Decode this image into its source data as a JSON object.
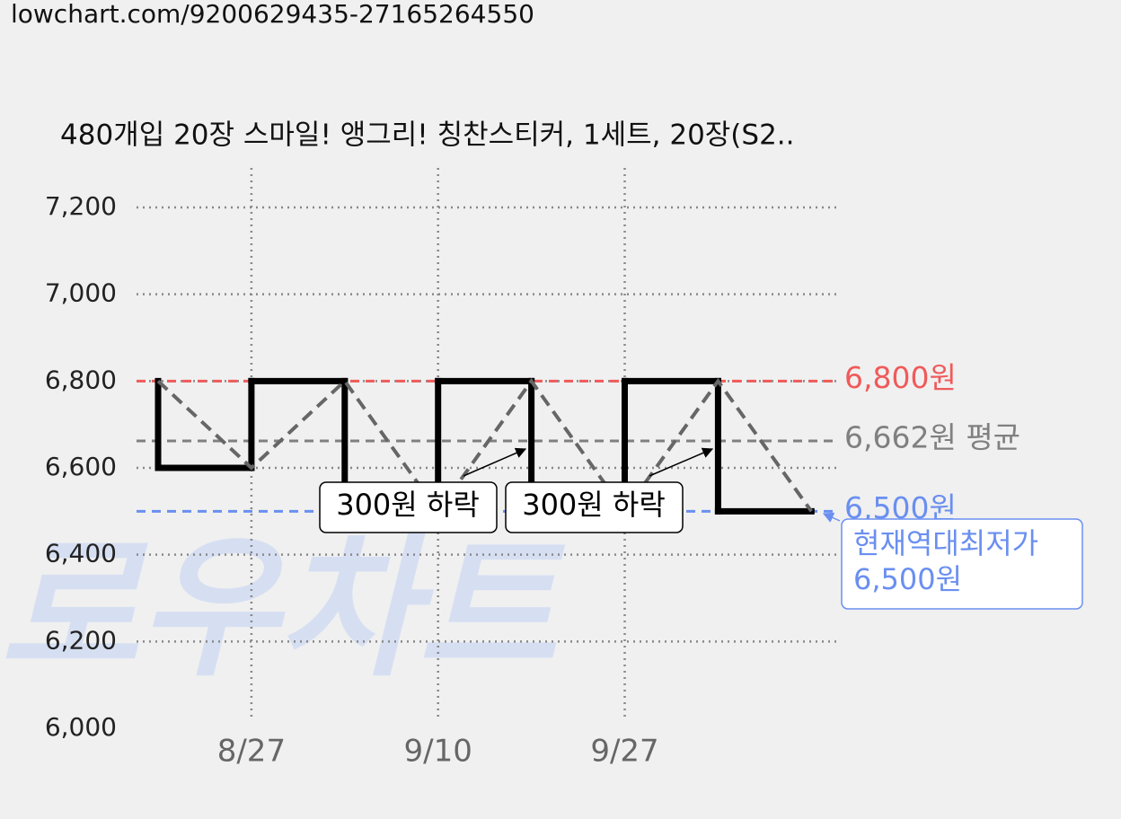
{
  "url": "lowchart.com/9200629435-27165264550",
  "watermark": "로우차트",
  "chart_data": {
    "type": "line",
    "title": "480개입 20장 스마일! 앵그리! 칭찬스티커, 1세트, 20장(S2..",
    "categories": [
      null,
      "8/27",
      null,
      "9/10",
      null,
      "9/27",
      null,
      null
    ],
    "series": [
      {
        "color": "#000000",
        "values": [
          6800,
          6600,
          6800,
          6500,
          6800,
          6500,
          6800,
          6500
        ]
      }
    ],
    "ylim": [
      6000,
      7200
    ],
    "yticks": [
      {
        "value": 6000,
        "label": "6,000"
      },
      {
        "value": 6200,
        "label": "6,200"
      },
      {
        "value": 6400,
        "label": "6,400"
      },
      {
        "value": 6600,
        "label": "6,600"
      },
      {
        "value": 6800,
        "label": "6,800"
      },
      {
        "value": 7000,
        "label": "7,000"
      },
      {
        "value": 7200,
        "label": "7,200"
      }
    ],
    "grid": true,
    "reference_lines": [
      {
        "value": 6800,
        "label": "6,800원",
        "color": "#f05a5a"
      },
      {
        "value": 6662,
        "label": "6,662원 평균",
        "color": "#808080"
      },
      {
        "value": 6500,
        "label": "6,500원",
        "color": "#6a8ff0"
      }
    ],
    "annotations": [
      "300원 하락",
      "300원 하락"
    ],
    "callout": [
      "현재역대최저가",
      "6,500원"
    ]
  }
}
